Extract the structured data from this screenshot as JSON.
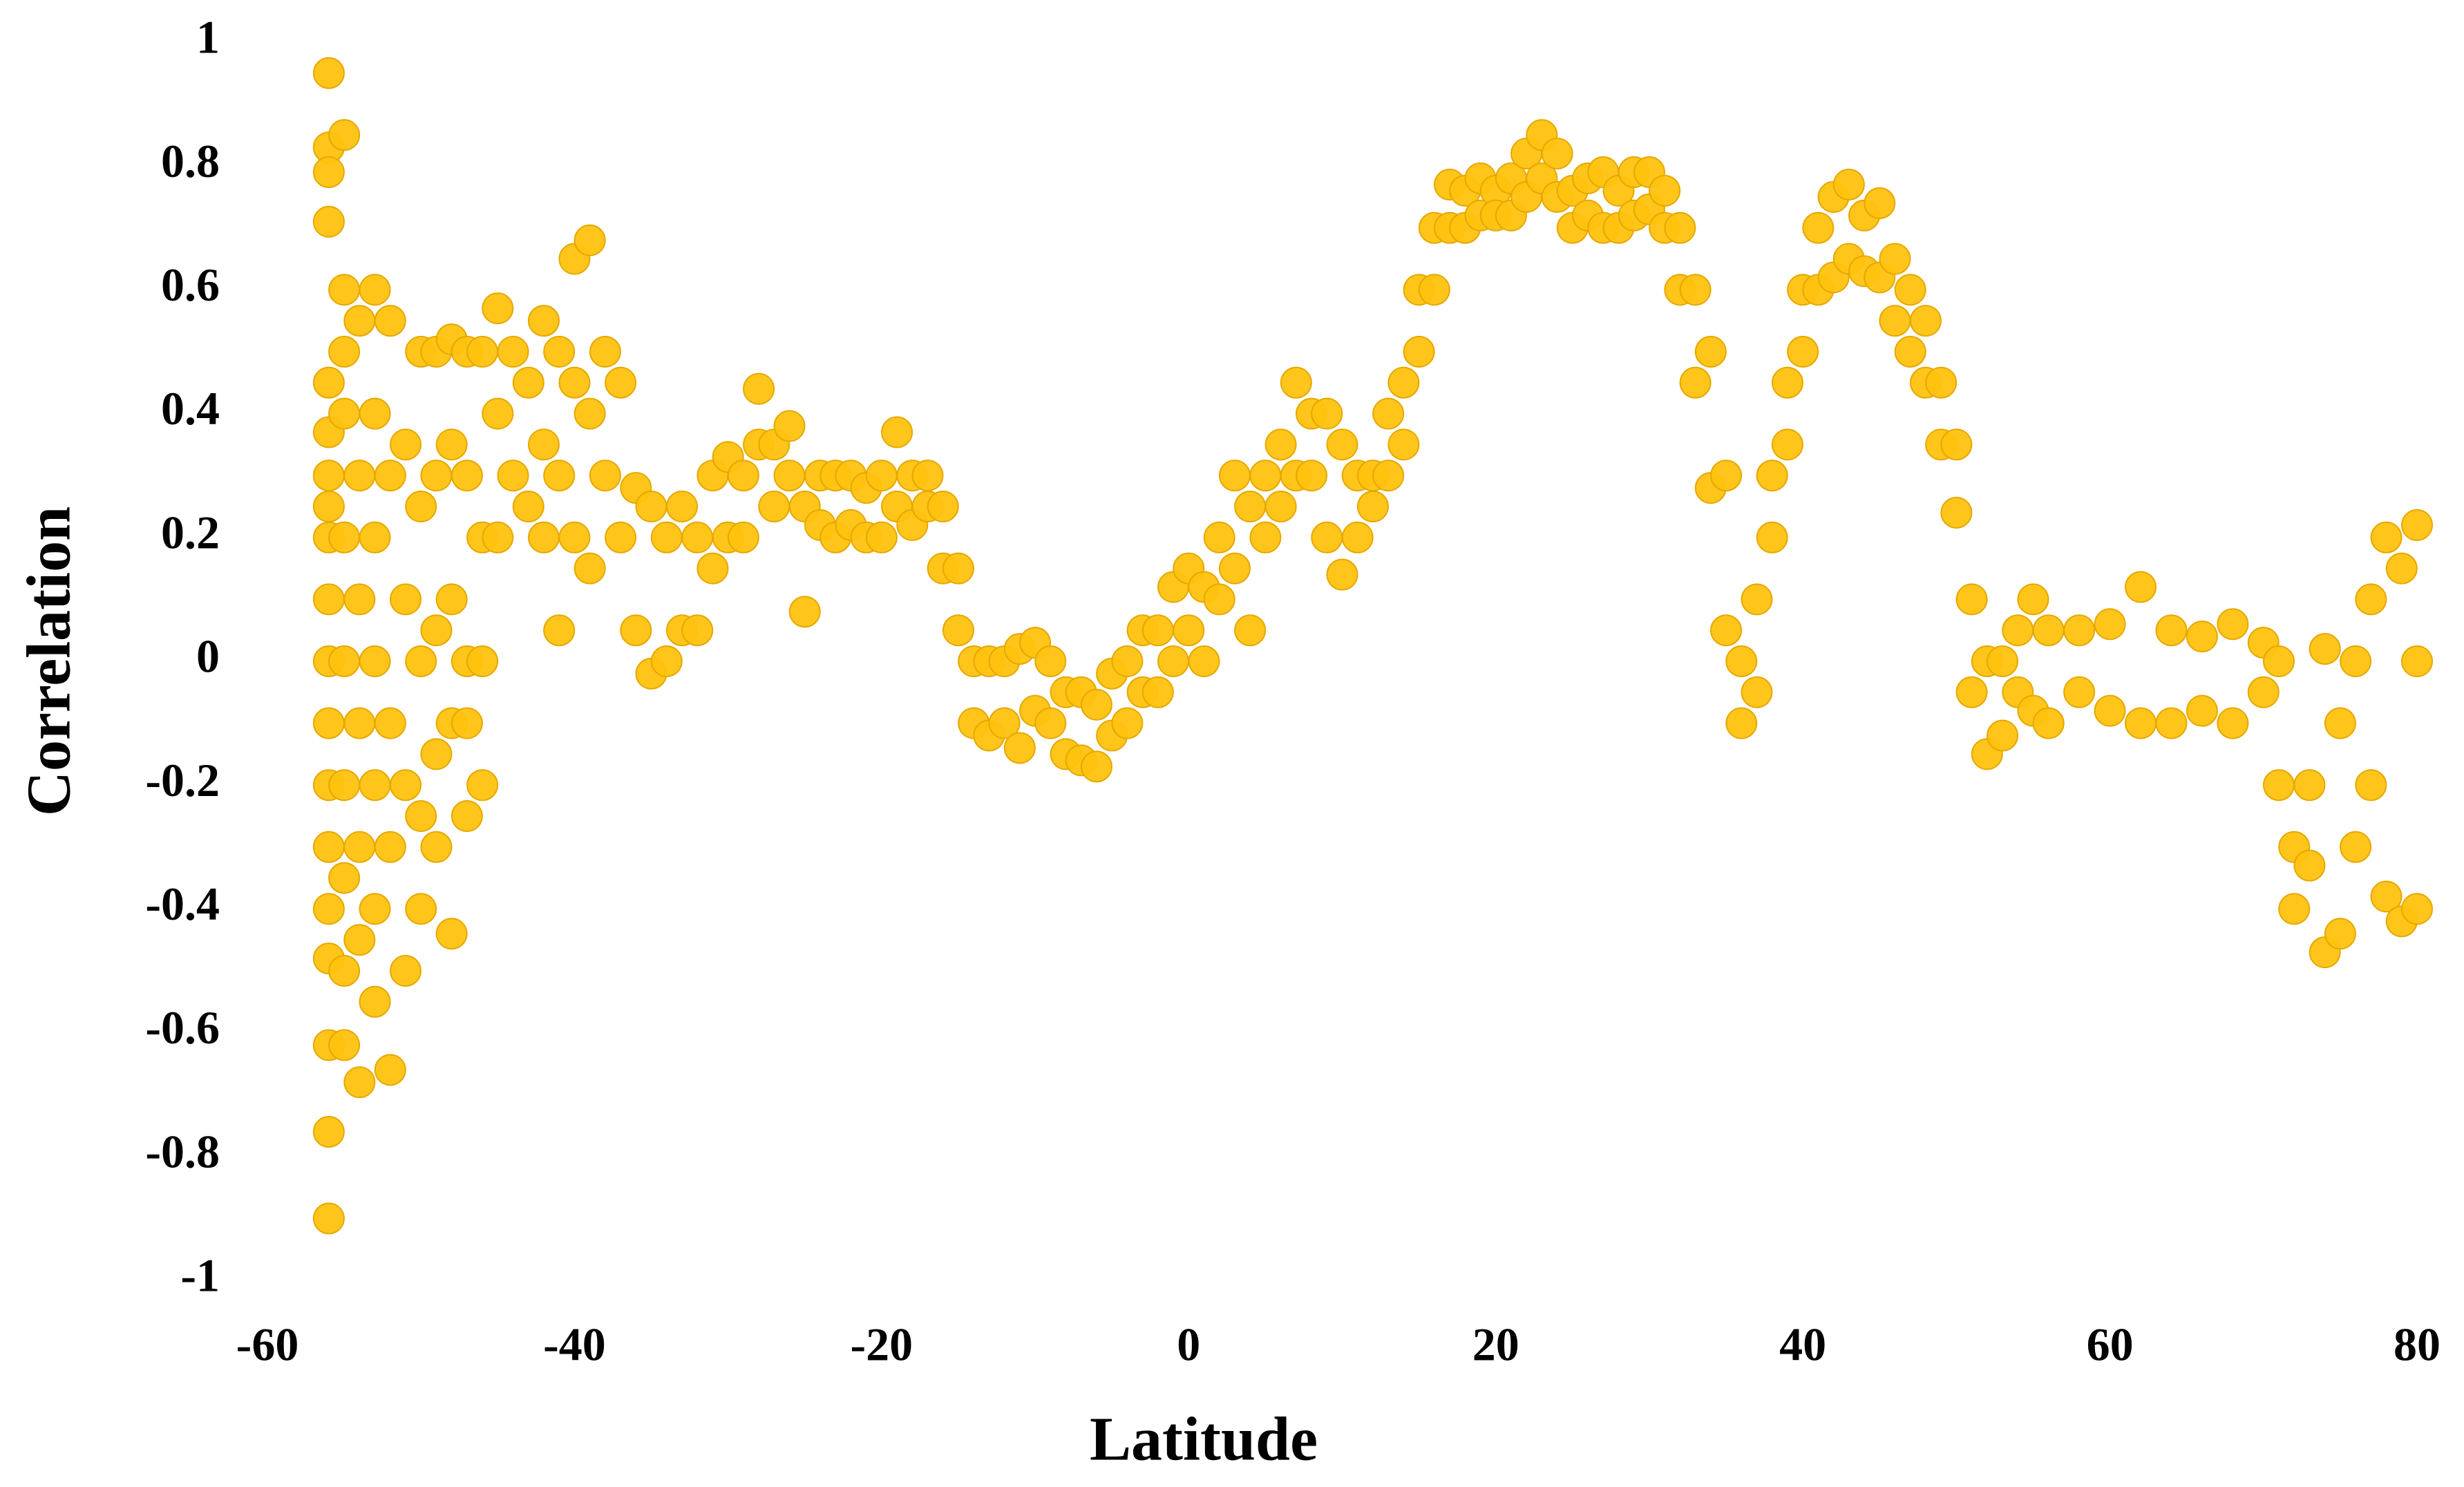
{
  "chart_data": {
    "type": "scatter",
    "x_label": "Latitude",
    "y_label": "Correlation",
    "xlim": [
      -60,
      80
    ],
    "xticks": [
      -60,
      -40,
      -20,
      0,
      20,
      40,
      60,
      80
    ],
    "ylim": [
      -1,
      1
    ],
    "yticks": [
      -1,
      -0.8,
      -0.6,
      -0.4,
      -0.2,
      0,
      0.2,
      0.4,
      0.6,
      0.8,
      1
    ],
    "color": "#ffc20e",
    "x": [
      -56,
      -56,
      -56,
      -56,
      -56,
      -56,
      -56,
      -56,
      -56,
      -56,
      -56,
      -56,
      -56,
      -56,
      -56,
      -56,
      -56,
      -56,
      -56,
      -55,
      -55,
      -55,
      -55,
      -55,
      -55,
      -55,
      -55,
      -55,
      -55,
      -54,
      -54,
      -54,
      -54,
      -54,
      -54,
      -54,
      -53,
      -53,
      -53,
      -53,
      -53,
      -53,
      -53,
      -52,
      -52,
      -52,
      -52,
      -52,
      -51,
      -51,
      -51,
      -51,
      -50,
      -50,
      -50,
      -50,
      -50,
      -49,
      -49,
      -49,
      -49,
      -49,
      -48,
      -48,
      -48,
      -48,
      -48,
      -47,
      -47,
      -47,
      -47,
      -47,
      -46,
      -46,
      -46,
      -46,
      -45,
      -45,
      -45,
      -44,
      -44,
      -43,
      -43,
      -42,
      -42,
      -42,
      -41,
      -41,
      -41,
      -40,
      -40,
      -40,
      -39,
      -39,
      -39,
      -38,
      -38,
      -37,
      -37,
      -36,
      -36,
      -35,
      -35,
      -34,
      -34,
      -33,
      -33,
      -32,
      -32,
      -31,
      -31,
      -30,
      -30,
      -29,
      -29,
      -28,
      -28,
      -27,
      -27,
      -26,
      -26,
      -25,
      -25,
      -24,
      -24,
      -23,
      -23,
      -22,
      -22,
      -21,
      -21,
      -20,
      -20,
      -19,
      -19,
      -18,
      -18,
      -17,
      -17,
      -16,
      -16,
      -15,
      -15,
      -14,
      -14,
      -13,
      -13,
      -12,
      -12,
      -11,
      -11,
      -10,
      -10,
      -9,
      -9,
      -8,
      -8,
      -7,
      -7,
      -6,
      -6,
      -5,
      -5,
      -4,
      -4,
      -3,
      -3,
      -2,
      -2,
      -1,
      -1,
      0,
      0,
      1,
      1,
      2,
      2,
      3,
      3,
      4,
      4,
      5,
      5,
      6,
      6,
      7,
      7,
      8,
      8,
      9,
      9,
      10,
      10,
      11,
      11,
      12,
      12,
      13,
      13,
      14,
      14,
      15,
      15,
      16,
      16,
      17,
      17,
      18,
      18,
      19,
      19,
      20,
      20,
      21,
      21,
      22,
      22,
      23,
      23,
      24,
      24,
      25,
      25,
      26,
      26,
      27,
      27,
      28,
      28,
      29,
      29,
      30,
      30,
      31,
      31,
      32,
      32,
      33,
      33,
      34,
      34,
      35,
      35,
      36,
      36,
      37,
      37,
      38,
      38,
      39,
      39,
      40,
      40,
      41,
      41,
      42,
      42,
      43,
      43,
      44,
      44,
      45,
      45,
      46,
      46,
      47,
      47,
      48,
      48,
      49,
      49,
      50,
      50,
      51,
      51,
      52,
      52,
      53,
      53,
      54,
      54,
      55,
      55,
      56,
      56,
      58,
      58,
      60,
      60,
      62,
      62,
      64,
      64,
      66,
      66,
      68,
      68,
      70,
      70,
      71,
      71,
      72,
      72,
      73,
      73,
      74,
      74,
      75,
      75,
      76,
      76,
      77,
      77,
      78,
      78,
      79,
      79,
      80,
      80,
      80
    ],
    "values": [
      0.95,
      0.83,
      0.79,
      0.71,
      0.45,
      0.37,
      0.3,
      0.25,
      0.2,
      0.1,
      0,
      -0.1,
      -0.2,
      -0.3,
      -0.4,
      -0.48,
      -0.62,
      -0.76,
      -0.9,
      0.85,
      0.6,
      0.5,
      0.4,
      0.2,
      0,
      -0.2,
      -0.35,
      -0.5,
      -0.62,
      0.55,
      0.3,
      0.1,
      -0.1,
      -0.3,
      -0.45,
      -0.68,
      0.6,
      0.4,
      0.2,
      0,
      -0.2,
      -0.4,
      -0.55,
      0.55,
      0.3,
      -0.1,
      -0.3,
      -0.66,
      0.35,
      0.1,
      -0.2,
      -0.5,
      0.5,
      0.25,
      0,
      -0.25,
      -0.4,
      0.5,
      0.3,
      0.05,
      -0.15,
      -0.3,
      0.52,
      0.35,
      0.1,
      -0.1,
      -0.44,
      0.5,
      0.3,
      0,
      -0.1,
      -0.25,
      0.5,
      0.2,
      0,
      -0.2,
      0.57,
      0.4,
      0.2,
      0.5,
      0.3,
      0.45,
      0.25,
      0.55,
      0.35,
      0.2,
      0.5,
      0.3,
      0.05,
      0.65,
      0.45,
      0.2,
      0.68,
      0.4,
      0.15,
      0.5,
      0.3,
      0.45,
      0.2,
      0.28,
      0.05,
      0.25,
      -0.02,
      0.2,
      0,
      0.25,
      0.05,
      0.2,
      0.05,
      0.3,
      0.15,
      0.33,
      0.2,
      0.3,
      0.2,
      0.44,
      0.35,
      0.35,
      0.25,
      0.38,
      0.3,
      0.25,
      0.08,
      0.3,
      0.22,
      0.3,
      0.2,
      0.3,
      0.22,
      0.28,
      0.2,
      0.3,
      0.2,
      0.37,
      0.25,
      0.3,
      0.22,
      0.3,
      0.25,
      0.25,
      0.15,
      0.15,
      0.05,
      0,
      -0.1,
      0,
      -0.12,
      0,
      -0.1,
      0.02,
      -0.14,
      0.03,
      -0.08,
      0,
      -0.1,
      -0.05,
      -0.15,
      -0.05,
      -0.16,
      -0.07,
      -0.17,
      -0.02,
      -0.12,
      0,
      -0.1,
      0.05,
      -0.05,
      0.05,
      -0.05,
      0.12,
      0,
      0.15,
      0.05,
      0.12,
      0,
      0.2,
      0.1,
      0.3,
      0.15,
      0.25,
      0.05,
      0.3,
      0.2,
      0.35,
      0.25,
      0.45,
      0.3,
      0.4,
      0.3,
      0.4,
      0.2,
      0.35,
      0.14,
      0.3,
      0.2,
      0.3,
      0.25,
      0.4,
      0.3,
      0.45,
      0.35,
      0.6,
      0.5,
      0.7,
      0.6,
      0.77,
      0.7,
      0.76,
      0.7,
      0.78,
      0.72,
      0.76,
      0.72,
      0.78,
      0.72,
      0.82,
      0.75,
      0.85,
      0.78,
      0.82,
      0.75,
      0.76,
      0.7,
      0.78,
      0.72,
      0.79,
      0.7,
      0.76,
      0.7,
      0.79,
      0.72,
      0.79,
      0.73,
      0.76,
      0.7,
      0.7,
      0.6,
      0.6,
      0.45,
      0.5,
      0.28,
      0.3,
      0.05,
      0,
      -0.1,
      0.1,
      -0.05,
      0.3,
      0.2,
      0.45,
      0.35,
      0.6,
      0.5,
      0.7,
      0.6,
      0.75,
      0.62,
      0.77,
      0.65,
      0.72,
      0.63,
      0.74,
      0.62,
      0.65,
      0.55,
      0.6,
      0.5,
      0.55,
      0.45,
      0.45,
      0.35,
      0.35,
      0.24,
      0.1,
      -0.05,
      0,
      -0.15,
      0,
      -0.12,
      0.05,
      -0.05,
      0.1,
      -0.08,
      0.05,
      -0.1,
      0.05,
      -0.05,
      0.06,
      -0.08,
      0.12,
      -0.1,
      0.05,
      -0.1,
      0.04,
      -0.08,
      0.06,
      -0.1,
      0.03,
      -0.05,
      0,
      -0.2,
      -0.3,
      -0.4,
      -0.2,
      -0.33,
      0.02,
      -0.47,
      -0.1,
      -0.44,
      0,
      -0.3,
      0.1,
      -0.2,
      0.2,
      -0.38,
      0.15,
      -0.42,
      0.22,
      0,
      -0.4
    ]
  }
}
